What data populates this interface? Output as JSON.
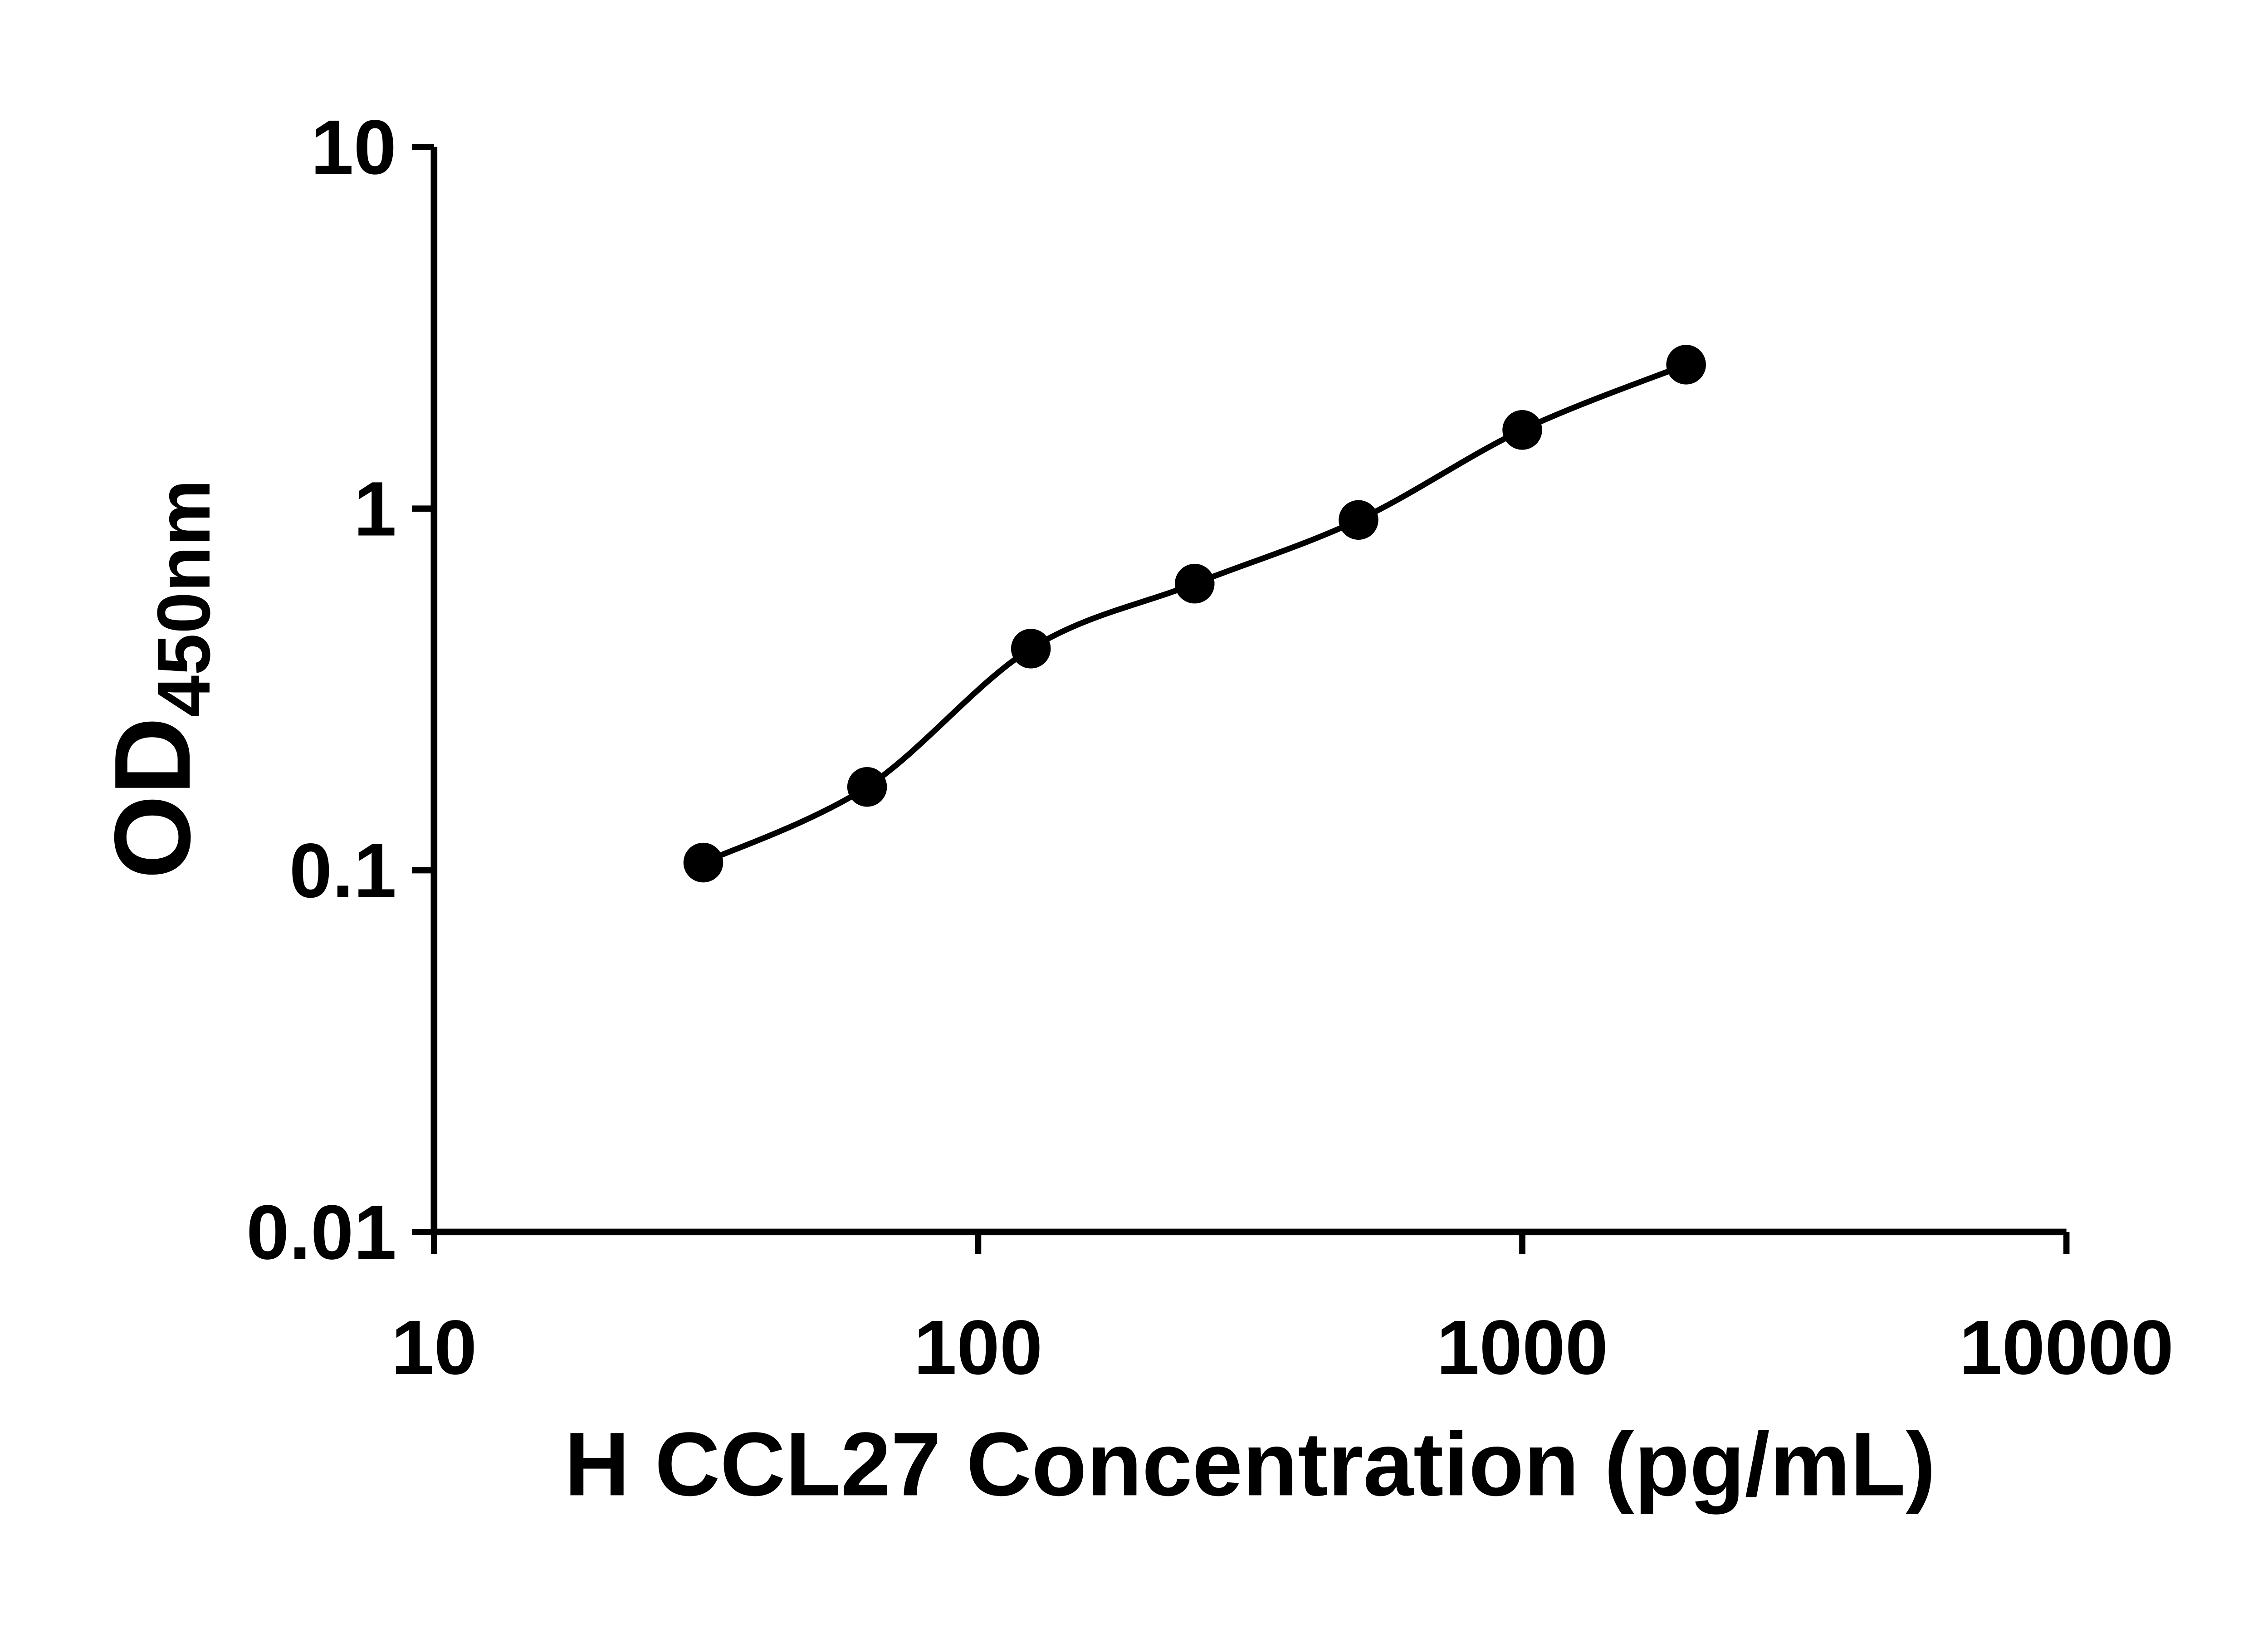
{
  "page": {
    "background": "#ffffff",
    "foreground": "#000000"
  },
  "chart_data": {
    "type": "scatter",
    "title": "",
    "xlabel": "H CCL27 Concentration (pg/mL)",
    "ylabel_main": "OD",
    "ylabel_sub": "450nm",
    "x_scale": "log",
    "y_scale": "log",
    "xlim": [
      10,
      10000
    ],
    "ylim": [
      0.01,
      10
    ],
    "x_ticks": [
      10,
      100,
      1000,
      10000
    ],
    "x_tick_labels": [
      "10",
      "100",
      "1000",
      "10000"
    ],
    "y_ticks": [
      10,
      1,
      0.1,
      0.01
    ],
    "y_tick_labels": [
      "10",
      "1",
      "0.1",
      "0.01"
    ],
    "grid": false,
    "legend": false,
    "series": [
      {
        "marker": "circle",
        "color": "#000000",
        "line": "smooth",
        "points": [
          {
            "x": 31.25,
            "y": 0.105
          },
          {
            "x": 62.5,
            "y": 0.17
          },
          {
            "x": 125,
            "y": 0.41
          },
          {
            "x": 250,
            "y": 0.62
          },
          {
            "x": 500,
            "y": 0.93
          },
          {
            "x": 1000,
            "y": 1.65
          },
          {
            "x": 2000,
            "y": 2.5
          }
        ]
      }
    ]
  }
}
